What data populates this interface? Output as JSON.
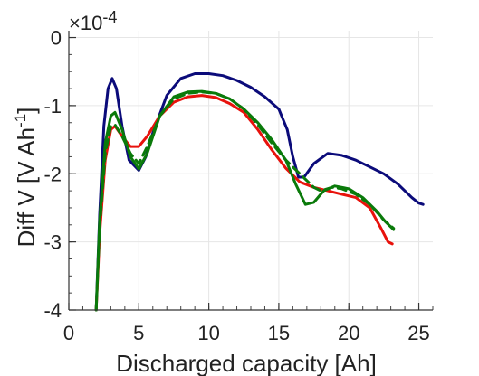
{
  "chart_data": {
    "type": "line",
    "xlabel": "Discharged capacity [Ah]",
    "ylabel_main": "Diff V [V Ah",
    "ylabel_sup": "-1",
    "ylabel_end": "]",
    "y_exponent_mult": "×10",
    "y_exponent_power": "-4",
    "xlim": [
      0,
      26
    ],
    "ylim": [
      -4,
      0.1
    ],
    "x_ticks": [
      0,
      5,
      10,
      15,
      20,
      25
    ],
    "x_tick_labels": [
      "0",
      "5",
      "10",
      "15",
      "20",
      "25"
    ],
    "y_ticks": [
      0,
      -1,
      -2,
      -3,
      -4
    ],
    "y_tick_labels": [
      "0",
      "-1",
      "-2",
      "-3",
      "-4"
    ],
    "grid": true,
    "series": [
      {
        "color": "#0b0b7a",
        "dash": "solid",
        "points": [
          [
            1.95,
            -4.0
          ],
          [
            2.2,
            -2.6
          ],
          [
            2.5,
            -1.3
          ],
          [
            2.8,
            -0.75
          ],
          [
            3.1,
            -0.6
          ],
          [
            3.4,
            -0.75
          ],
          [
            3.8,
            -1.3
          ],
          [
            4.3,
            -1.8
          ],
          [
            5.0,
            -1.95
          ],
          [
            5.5,
            -1.75
          ],
          [
            6.0,
            -1.4
          ],
          [
            7.0,
            -0.85
          ],
          [
            8.0,
            -0.6
          ],
          [
            9.0,
            -0.53
          ],
          [
            10.0,
            -0.53
          ],
          [
            11.0,
            -0.56
          ],
          [
            12.0,
            -0.63
          ],
          [
            13.0,
            -0.73
          ],
          [
            14.0,
            -0.87
          ],
          [
            15.0,
            -1.05
          ],
          [
            15.6,
            -1.35
          ],
          [
            16.0,
            -1.75
          ],
          [
            16.4,
            -2.05
          ],
          [
            16.8,
            -2.05
          ],
          [
            17.5,
            -1.85
          ],
          [
            18.5,
            -1.7
          ],
          [
            19.5,
            -1.73
          ],
          [
            20.5,
            -1.8
          ],
          [
            21.5,
            -1.9
          ],
          [
            22.5,
            -2.0
          ],
          [
            23.5,
            -2.15
          ],
          [
            24.5,
            -2.35
          ],
          [
            25.0,
            -2.43
          ],
          [
            25.3,
            -2.45
          ]
        ]
      },
      {
        "color": "#e8120c",
        "dash": "solid",
        "points": [
          [
            1.95,
            -4.0
          ],
          [
            2.2,
            -2.9
          ],
          [
            2.6,
            -1.8
          ],
          [
            3.0,
            -1.35
          ],
          [
            3.3,
            -1.3
          ],
          [
            3.8,
            -1.45
          ],
          [
            4.4,
            -1.6
          ],
          [
            5.0,
            -1.6
          ],
          [
            5.6,
            -1.45
          ],
          [
            6.5,
            -1.15
          ],
          [
            7.5,
            -0.95
          ],
          [
            8.5,
            -0.87
          ],
          [
            9.5,
            -0.85
          ],
          [
            10.5,
            -0.88
          ],
          [
            11.5,
            -0.97
          ],
          [
            12.5,
            -1.1
          ],
          [
            13.5,
            -1.35
          ],
          [
            14.5,
            -1.65
          ],
          [
            15.5,
            -1.92
          ],
          [
            16.5,
            -2.12
          ],
          [
            17.5,
            -2.2
          ],
          [
            18.5,
            -2.25
          ],
          [
            19.5,
            -2.3
          ],
          [
            20.5,
            -2.35
          ],
          [
            21.5,
            -2.5
          ],
          [
            22.3,
            -2.8
          ],
          [
            22.8,
            -3.0
          ],
          [
            23.1,
            -3.03
          ]
        ]
      },
      {
        "color": "#0a7a0a",
        "dash": "dashed",
        "points": [
          [
            1.95,
            -4.0
          ],
          [
            2.2,
            -2.8
          ],
          [
            2.6,
            -1.7
          ],
          [
            3.0,
            -1.3
          ],
          [
            3.3,
            -1.28
          ],
          [
            3.8,
            -1.45
          ],
          [
            4.4,
            -1.7
          ],
          [
            5.0,
            -1.85
          ],
          [
            5.6,
            -1.6
          ],
          [
            6.5,
            -1.15
          ],
          [
            7.5,
            -0.9
          ],
          [
            8.5,
            -0.82
          ],
          [
            9.5,
            -0.8
          ],
          [
            10.5,
            -0.82
          ],
          [
            11.5,
            -0.9
          ],
          [
            12.5,
            -1.05
          ],
          [
            13.5,
            -1.28
          ],
          [
            14.5,
            -1.55
          ],
          [
            15.5,
            -1.8
          ],
          [
            16.5,
            -2.0
          ],
          [
            17.5,
            -2.2
          ],
          [
            18.0,
            -2.25
          ],
          [
            18.8,
            -2.2
          ],
          [
            19.5,
            -2.22
          ],
          [
            20.5,
            -2.3
          ],
          [
            21.5,
            -2.45
          ],
          [
            22.5,
            -2.68
          ],
          [
            23.2,
            -2.8
          ]
        ]
      },
      {
        "color": "#0a7a0a",
        "dash": "solid",
        "points": [
          [
            1.95,
            -4.0
          ],
          [
            2.2,
            -2.7
          ],
          [
            2.6,
            -1.55
          ],
          [
            3.0,
            -1.15
          ],
          [
            3.3,
            -1.1
          ],
          [
            3.8,
            -1.35
          ],
          [
            4.4,
            -1.75
          ],
          [
            5.0,
            -1.93
          ],
          [
            5.6,
            -1.7
          ],
          [
            6.5,
            -1.15
          ],
          [
            7.5,
            -0.87
          ],
          [
            8.5,
            -0.8
          ],
          [
            9.5,
            -0.79
          ],
          [
            10.5,
            -0.82
          ],
          [
            11.5,
            -0.9
          ],
          [
            12.5,
            -1.05
          ],
          [
            13.5,
            -1.25
          ],
          [
            14.5,
            -1.5
          ],
          [
            15.5,
            -1.8
          ],
          [
            16.2,
            -2.15
          ],
          [
            16.9,
            -2.45
          ],
          [
            17.5,
            -2.42
          ],
          [
            18.2,
            -2.25
          ],
          [
            19.0,
            -2.18
          ],
          [
            20.0,
            -2.22
          ],
          [
            21.0,
            -2.35
          ],
          [
            22.0,
            -2.55
          ],
          [
            22.6,
            -2.7
          ],
          [
            23.2,
            -2.82
          ]
        ]
      }
    ]
  }
}
